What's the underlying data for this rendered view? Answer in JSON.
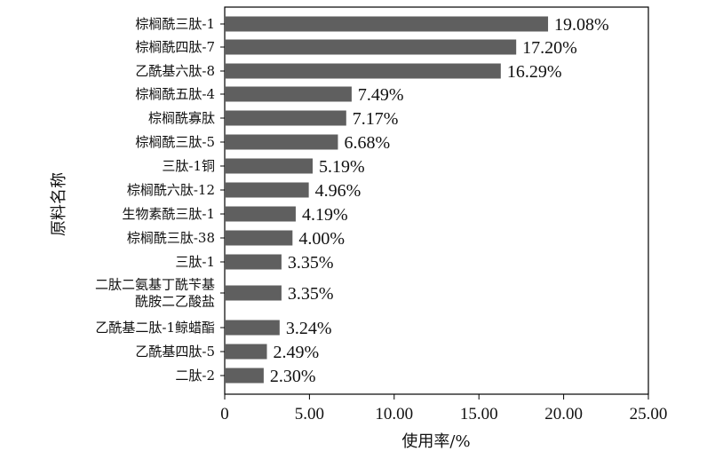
{
  "chart_data": {
    "type": "bar",
    "orientation": "horizontal",
    "categories": [
      [
        "棕榈酰三肽-1"
      ],
      [
        "棕榈酰四肽-7"
      ],
      [
        "乙酰基六肽-8"
      ],
      [
        "棕榈酰五肽-4"
      ],
      [
        "棕榈酰寡肽"
      ],
      [
        "棕榈酰三肽-5"
      ],
      [
        "三肽-1铜"
      ],
      [
        "棕榈酰六肽-12"
      ],
      [
        "生物素酰三肽-1"
      ],
      [
        "棕榈酰三肽-38"
      ],
      [
        "三肽-1"
      ],
      [
        "二肽二氨基丁酰苄基",
        "酰胺二乙酸盐"
      ],
      [
        "乙酰基二肽-1鲸蜡酯"
      ],
      [
        "乙酰基四肽-5"
      ],
      [
        "二肽-2"
      ]
    ],
    "values": [
      19.08,
      17.2,
      16.29,
      7.49,
      7.17,
      6.68,
      5.19,
      4.96,
      4.19,
      4.0,
      3.35,
      3.35,
      3.24,
      2.49,
      2.3
    ],
    "value_labels": [
      "19.08%",
      "17.20%",
      "16.29%",
      "7.49%",
      "7.17%",
      "6.68%",
      "5.19%",
      "4.96%",
      "4.19%",
      "4.00%",
      "3.35%",
      "3.35%",
      "3.24%",
      "2.49%",
      "2.30%"
    ],
    "xlabel": "使用率/%",
    "ylabel": "原料名称",
    "xlim": [
      0,
      25
    ],
    "xticks": [
      0,
      5,
      10,
      15,
      20,
      25
    ],
    "xtick_labels": [
      "0",
      "5.00",
      "10.00",
      "15.00",
      "20.00",
      "25.00"
    ],
    "bar_color": "#5f5f5f",
    "grid": false
  }
}
